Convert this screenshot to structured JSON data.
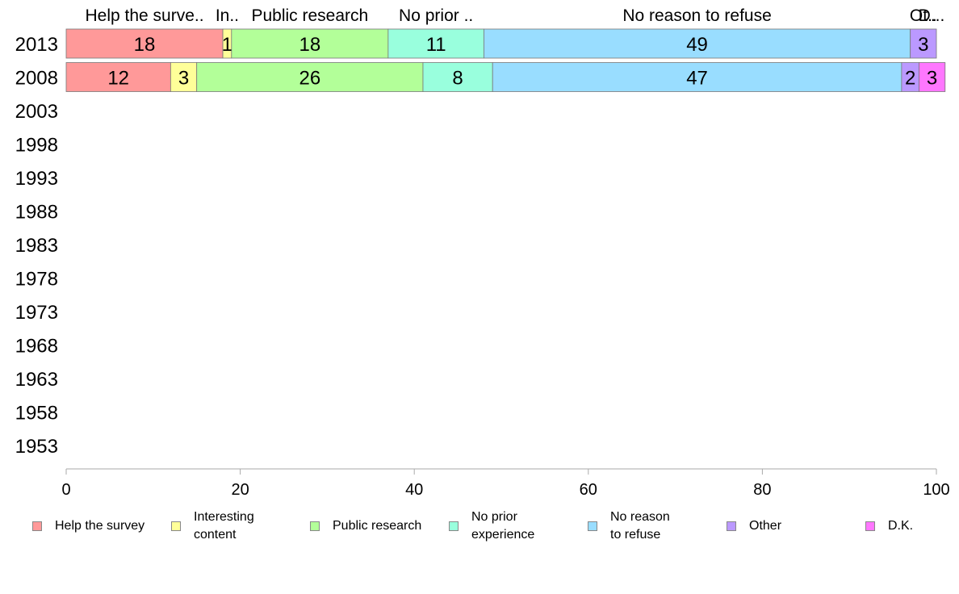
{
  "chart_data": {
    "type": "bar",
    "orientation": "horizontal",
    "stacked": true,
    "categories": [
      "2013",
      "2008",
      "2003",
      "1998",
      "1993",
      "1988",
      "1983",
      "1978",
      "1973",
      "1968",
      "1963",
      "1958",
      "1953"
    ],
    "series": [
      {
        "name": "Help the survey",
        "color": "#FF9999",
        "values": [
          18,
          12,
          null,
          null,
          null,
          null,
          null,
          null,
          null,
          null,
          null,
          null,
          null
        ]
      },
      {
        "name": "Interesting content",
        "color": "#FFFF99",
        "values": [
          1,
          3,
          null,
          null,
          null,
          null,
          null,
          null,
          null,
          null,
          null,
          null,
          null
        ]
      },
      {
        "name": "Public research",
        "color": "#B3FF99",
        "values": [
          18,
          26,
          null,
          null,
          null,
          null,
          null,
          null,
          null,
          null,
          null,
          null,
          null
        ]
      },
      {
        "name": "No prior experience",
        "color": "#99FFDD",
        "values": [
          11,
          8,
          null,
          null,
          null,
          null,
          null,
          null,
          null,
          null,
          null,
          null,
          null
        ]
      },
      {
        "name": "No reason to refuse",
        "color": "#99DDFF",
        "values": [
          49,
          47,
          null,
          null,
          null,
          null,
          null,
          null,
          null,
          null,
          null,
          null,
          null
        ]
      },
      {
        "name": "Other",
        "color": "#BB99FF",
        "values": [
          3,
          2,
          null,
          null,
          null,
          null,
          null,
          null,
          null,
          null,
          null,
          null,
          null
        ]
      },
      {
        "name": "D.K.",
        "color": "#FF77FF",
        "values": [
          0,
          3,
          null,
          null,
          null,
          null,
          null,
          null,
          null,
          null,
          null,
          null,
          null
        ]
      }
    ],
    "top_labels": [
      "Help the surve..",
      "In..",
      "Public research",
      "No prior ..",
      "No reason to refuse",
      "Ot..",
      "D..."
    ],
    "xlim": [
      0,
      100
    ],
    "xticks": [
      0,
      20,
      40,
      60,
      80,
      100
    ],
    "xlabel": "",
    "ylabel": "",
    "title": "",
    "grid": false,
    "legend": {
      "placement": "bottom",
      "labels": [
        "Help the survey",
        "Interesting\ncontent",
        "Public research",
        "No prior\nexperience",
        "No reason\nto refuse",
        "Other",
        "D.K."
      ]
    }
  }
}
